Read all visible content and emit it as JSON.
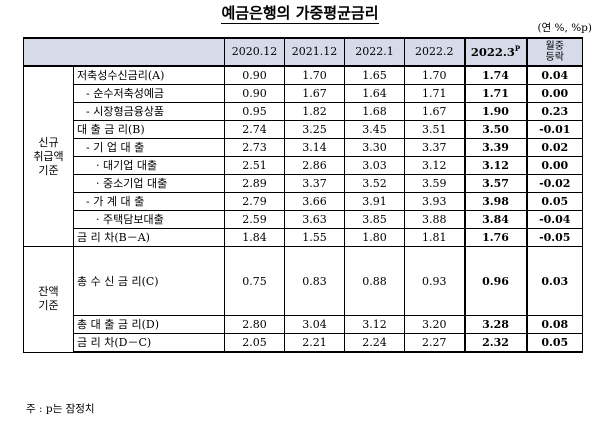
{
  "title": "예금은행의 가중평균금리",
  "unit": "(연 %, %p)",
  "columns": [
    "2020.12",
    "2021.12",
    "2022.1",
    "2022.2",
    "2022.3"
  ],
  "highlight_sup": "P",
  "change_header": [
    "월중",
    "등락"
  ],
  "groups": {
    "new": [
      "신규",
      "취급액",
      "기준"
    ],
    "balance": [
      "잔액",
      "기준"
    ]
  },
  "new_rows": [
    {
      "label": "저축성수신금리(A)",
      "values": [
        "0.90",
        "1.70",
        "1.65",
        "1.70",
        "1.74"
      ],
      "change": "0.04"
    },
    {
      "label": "- 순수저축성예금",
      "values": [
        "0.90",
        "1.67",
        "1.64",
        "1.71",
        "1.71"
      ],
      "change": "0.00"
    },
    {
      "label": "- 시장형금융상품",
      "values": [
        "0.95",
        "1.82",
        "1.68",
        "1.67",
        "1.90"
      ],
      "change": "0.23"
    },
    {
      "label": "대 출 금 리(B)",
      "values": [
        "2.74",
        "3.25",
        "3.45",
        "3.51",
        "3.50"
      ],
      "change": "-0.01"
    },
    {
      "label": "- 기 업 대 출",
      "values": [
        "2.73",
        "3.14",
        "3.30",
        "3.37",
        "3.39"
      ],
      "change": "0.02"
    },
    {
      "label": "· 대기업 대출",
      "values": [
        "2.51",
        "2.86",
        "3.03",
        "3.12",
        "3.12"
      ],
      "change": "0.00"
    },
    {
      "label": "· 중소기업 대출",
      "values": [
        "2.89",
        "3.37",
        "3.52",
        "3.59",
        "3.57"
      ],
      "change": "-0.02"
    },
    {
      "label": "- 가 계 대 출",
      "values": [
        "2.79",
        "3.66",
        "3.91",
        "3.93",
        "3.98"
      ],
      "change": "0.05"
    },
    {
      "label": "· 주택담보대출",
      "values": [
        "2.59",
        "3.63",
        "3.85",
        "3.88",
        "3.84"
      ],
      "change": "-0.04"
    }
  ],
  "new_spread": {
    "label": "금 리 차(B－A)",
    "values": [
      "1.84",
      "1.55",
      "1.80",
      "1.81",
      "1.76"
    ],
    "change": "-0.05"
  },
  "balance_rows": [
    {
      "label": "총 수 신 금 리(C)",
      "values": [
        "0.75",
        "0.83",
        "0.88",
        "0.93",
        "0.96"
      ],
      "change": "0.03"
    },
    {
      "label": "총 대 출 금 리(D)",
      "values": [
        "2.80",
        "3.04",
        "3.12",
        "3.20",
        "3.28"
      ],
      "change": "0.08"
    },
    {
      "label": "금 리 차(D－C)",
      "values": [
        "2.05",
        "2.21",
        "2.24",
        "2.27",
        "2.32"
      ],
      "change": "0.05"
    }
  ],
  "note": "주 : p는 잠정치"
}
